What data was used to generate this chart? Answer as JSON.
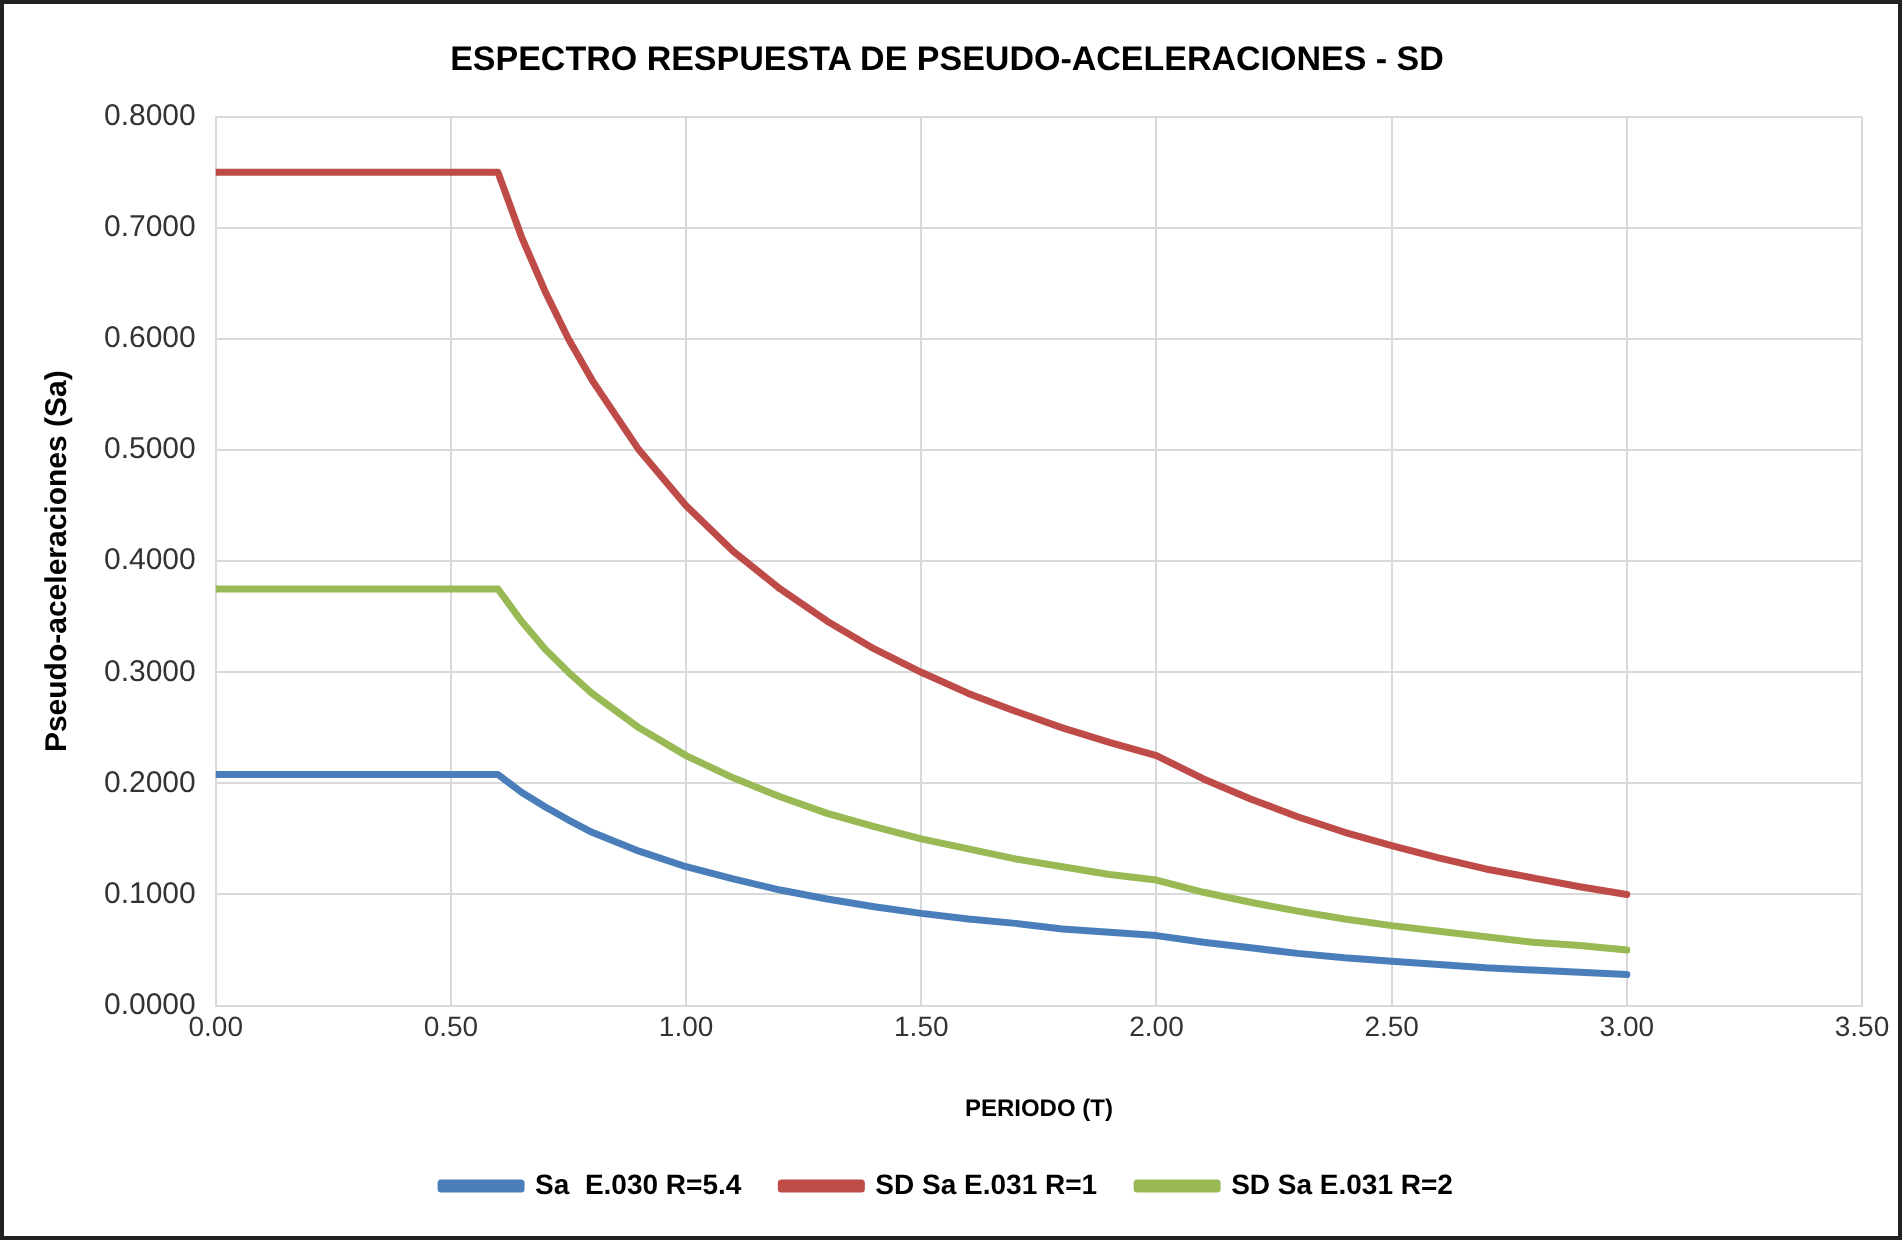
{
  "chart_data": {
    "type": "line",
    "title": "ESPECTRO RESPUESTA DE PSEUDO-ACELERACIONES - SD",
    "xlabel": "PERIODO (T)",
    "ylabel": "Pseudo-aceleraciones (Sa)",
    "x": [
      0,
      0.1,
      0.2,
      0.3,
      0.4,
      0.5,
      0.6,
      0.65,
      0.7,
      0.75,
      0.8,
      0.9,
      1.0,
      1.1,
      1.2,
      1.3,
      1.4,
      1.5,
      1.6,
      1.7,
      1.8,
      1.9,
      2.0,
      2.1,
      2.2,
      2.3,
      2.4,
      2.5,
      2.6,
      2.7,
      2.8,
      2.9,
      3.0
    ],
    "series": [
      {
        "name": "Sa  E.030 R=5.4",
        "color": "#4a7ebb",
        "values": [
          0.208,
          0.208,
          0.208,
          0.208,
          0.208,
          0.208,
          0.208,
          0.192,
          0.179,
          0.167,
          0.156,
          0.139,
          0.125,
          0.114,
          0.104,
          0.096,
          0.089,
          0.083,
          0.078,
          0.074,
          0.069,
          0.066,
          0.063,
          0.057,
          0.052,
          0.047,
          0.043,
          0.04,
          0.037,
          0.034,
          0.032,
          0.03,
          0.028
        ]
      },
      {
        "name": "SD Sa E.031 R=1",
        "color": "#be4b48",
        "values": [
          0.75,
          0.75,
          0.75,
          0.75,
          0.75,
          0.75,
          0.75,
          0.692,
          0.643,
          0.6,
          0.563,
          0.5,
          0.45,
          0.409,
          0.375,
          0.346,
          0.321,
          0.3,
          0.281,
          0.265,
          0.25,
          0.237,
          0.225,
          0.204,
          0.186,
          0.17,
          0.156,
          0.144,
          0.133,
          0.123,
          0.115,
          0.107,
          0.1
        ]
      },
      {
        "name": "SD Sa E.031 R=2",
        "color": "#98b954",
        "values": [
          0.375,
          0.375,
          0.375,
          0.375,
          0.375,
          0.375,
          0.375,
          0.346,
          0.321,
          0.3,
          0.281,
          0.25,
          0.225,
          0.205,
          0.188,
          0.173,
          0.161,
          0.15,
          0.141,
          0.132,
          0.125,
          0.118,
          0.113,
          0.102,
          0.093,
          0.085,
          0.078,
          0.072,
          0.067,
          0.062,
          0.057,
          0.054,
          0.05
        ]
      }
    ],
    "xlim": [
      0,
      3.5
    ],
    "xticks": [
      {
        "value": 0,
        "label": "0.00"
      },
      {
        "value": 0.5,
        "label": "0.50"
      },
      {
        "value": 1,
        "label": "1.00"
      },
      {
        "value": 1.5,
        "label": "1.50"
      },
      {
        "value": 2,
        "label": "2.00"
      },
      {
        "value": 2.5,
        "label": "2.50"
      },
      {
        "value": 3,
        "label": "3.00"
      },
      {
        "value": 3.5,
        "label": "3.50"
      }
    ],
    "ylim": [
      0,
      0.8
    ],
    "yticks": [
      {
        "value": 0,
        "label": "0.0000"
      },
      {
        "value": 0.1,
        "label": "0.1000"
      },
      {
        "value": 0.2,
        "label": "0.2000"
      },
      {
        "value": 0.3,
        "label": "0.3000"
      },
      {
        "value": 0.4,
        "label": "0.4000"
      },
      {
        "value": 0.5,
        "label": "0.5000"
      },
      {
        "value": 0.6,
        "label": "0.6000"
      },
      {
        "value": 0.7,
        "label": "0.7000"
      },
      {
        "value": 0.8,
        "label": "0.8000"
      }
    ],
    "grid": true,
    "legend": "bottom",
    "marker": "none",
    "line_style": "solid"
  }
}
